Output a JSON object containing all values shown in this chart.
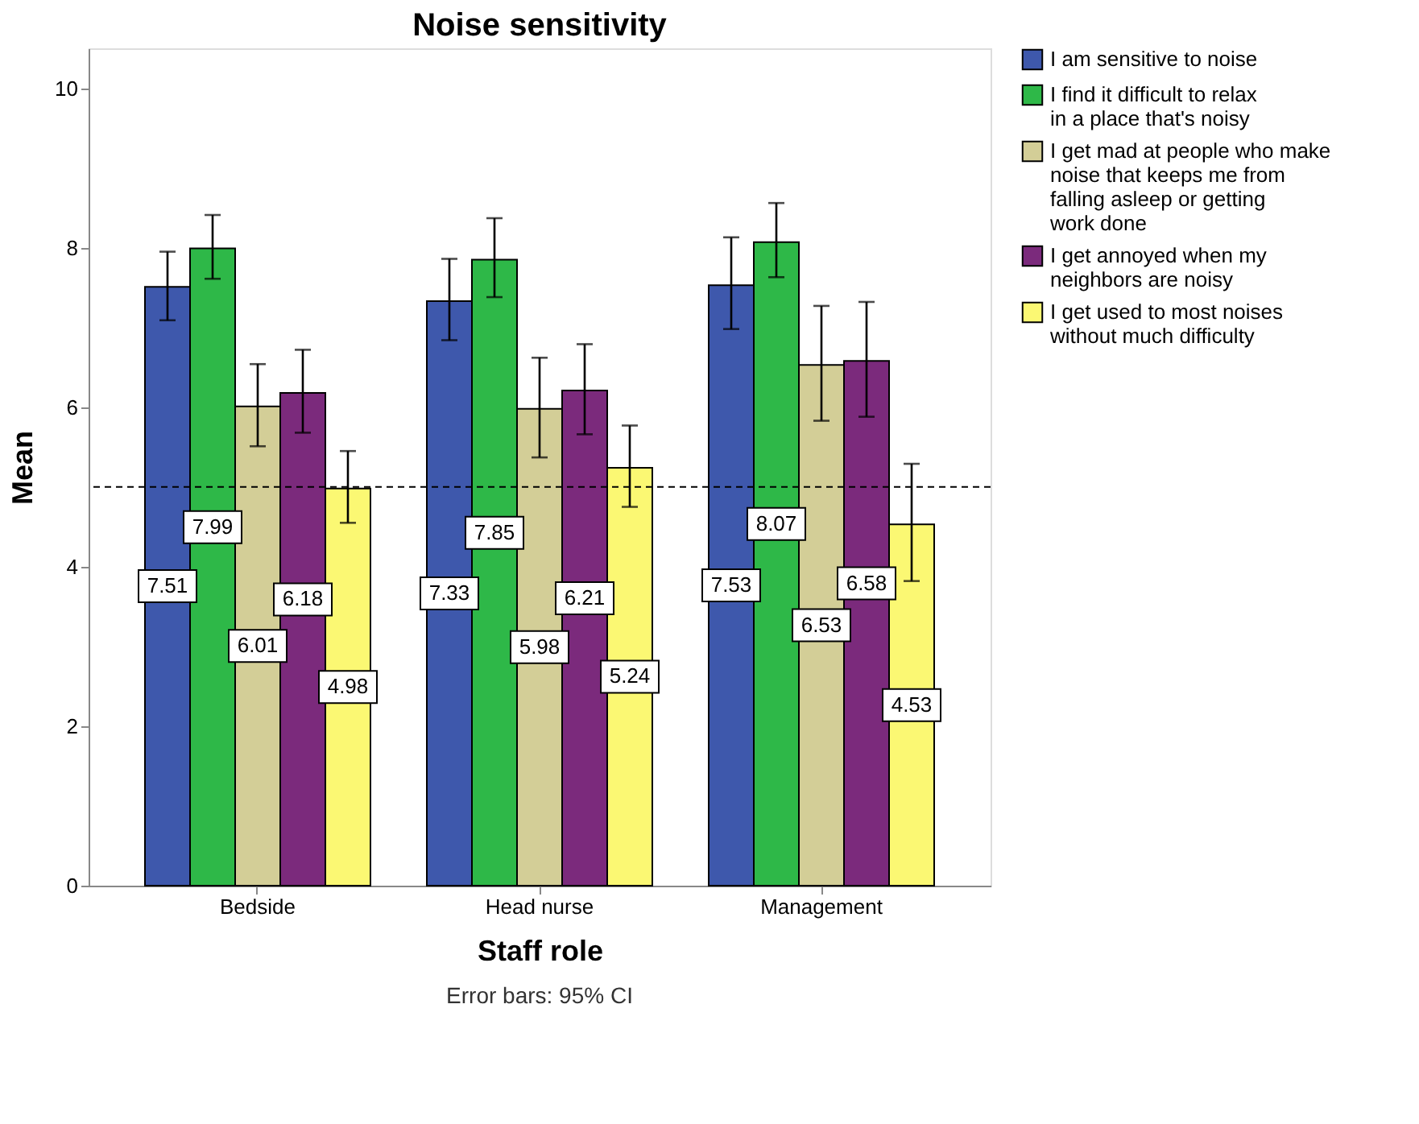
{
  "chart_data": {
    "type": "bar",
    "title": "Noise sensitivity",
    "xlabel": "Staff role",
    "ylabel": "Mean",
    "categories": [
      "Bedside",
      "Head nurse",
      "Management"
    ],
    "series": [
      {
        "name": "I am sensitive to noise",
        "color": "#3e58ac",
        "values": [
          7.51,
          7.33,
          7.53
        ],
        "errors": [
          [
            7.09,
            7.95
          ],
          [
            6.84,
            7.86
          ],
          [
            6.98,
            8.13
          ]
        ]
      },
      {
        "name": "I find it difficult to relax in a place that's noisy",
        "color": "#2eb848",
        "values": [
          7.99,
          7.85,
          8.07
        ],
        "errors": [
          [
            7.61,
            8.41
          ],
          [
            7.38,
            8.37
          ],
          [
            7.63,
            8.56
          ]
        ]
      },
      {
        "name": "I get mad at people who make noise that keeps me from falling asleep or getting work done",
        "color": "#d3ce97",
        "values": [
          6.01,
          5.98,
          6.53
        ],
        "errors": [
          [
            5.51,
            6.54
          ],
          [
            5.37,
            6.62
          ],
          [
            5.83,
            7.27
          ]
        ]
      },
      {
        "name": "I get annoyed when my neighbors are noisy",
        "color": "#7b2a7c",
        "values": [
          6.18,
          6.21,
          6.58
        ],
        "errors": [
          [
            5.68,
            6.72
          ],
          [
            5.66,
            6.79
          ],
          [
            5.88,
            7.32
          ]
        ]
      },
      {
        "name": "I get used to most noises without much difficulty",
        "color": "#fbf873",
        "values": [
          4.98,
          5.24,
          4.53
        ],
        "errors": [
          [
            4.55,
            5.45
          ],
          [
            4.75,
            5.77
          ],
          [
            3.82,
            5.29
          ]
        ]
      }
    ],
    "ylim": [
      0,
      10.5
    ],
    "yticks": [
      0,
      2,
      4,
      6,
      8,
      10
    ],
    "ref_lines": [
      {
        "axis": "y",
        "value": 5,
        "line_style": "dashed"
      }
    ],
    "data_labels": true,
    "legend": "top right",
    "grid": false,
    "annotations": [
      "Error bars: 95% CI"
    ]
  }
}
